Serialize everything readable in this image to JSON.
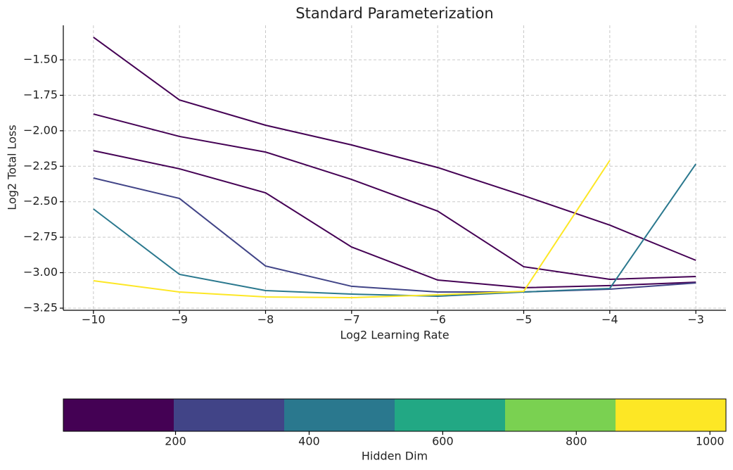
{
  "chart_data": {
    "type": "line",
    "title": "Standard Parameterization",
    "x_label": "Log2 Learning Rate",
    "y_label": "Log2 Total Loss",
    "x": [
      -10,
      -9,
      -8,
      -7,
      -6,
      -5,
      -4,
      -3
    ],
    "series": [
      {
        "color": "#440154",
        "values": [
          -1.341,
          -1.783,
          -1.961,
          -2.1,
          -2.259,
          -2.457,
          -2.665,
          -2.913
        ]
      },
      {
        "color": "#440154",
        "values": [
          -1.882,
          -2.04,
          -2.15,
          -2.343,
          -2.566,
          -2.958,
          -3.047,
          -3.027
        ]
      },
      {
        "color": "#440154",
        "values": [
          -2.14,
          -2.268,
          -2.437,
          -2.819,
          -3.052,
          -3.106,
          -3.091,
          -3.067
        ]
      },
      {
        "color": "#414487",
        "values": [
          -2.333,
          -2.477,
          -2.953,
          -3.096,
          -3.136,
          -3.136,
          -3.116,
          -3.072
        ]
      },
      {
        "color": "#2a788e",
        "values": [
          -2.551,
          -3.012,
          -3.126,
          -3.151,
          -3.166,
          -3.136,
          -3.111,
          -2.234
        ]
      },
      {
        "color": "#fde725",
        "values": [
          -3.057,
          -3.136,
          -3.171,
          -3.176,
          -3.156,
          -3.131,
          -2.209,
          null
        ]
      }
    ],
    "xlim": [
      -10.35,
      -2.65
    ],
    "xticks": [
      {
        "value": -10,
        "label": "−10"
      },
      {
        "value": -9,
        "label": "−9"
      },
      {
        "value": -8,
        "label": "−8"
      },
      {
        "value": -7,
        "label": "−7"
      },
      {
        "value": -6,
        "label": "−6"
      },
      {
        "value": -5,
        "label": "−5"
      },
      {
        "value": -4,
        "label": "−4"
      },
      {
        "value": -3,
        "label": "−3"
      }
    ],
    "ylim": [
      -3.265,
      -1.257
    ],
    "yticks": [
      {
        "value": -3.25,
        "label": "−3.25"
      },
      {
        "value": -3,
        "label": "−3.00"
      },
      {
        "value": -2.75,
        "label": "−2.75"
      },
      {
        "value": -2.5,
        "label": "−2.50"
      },
      {
        "value": -2.25,
        "label": "−2.25"
      },
      {
        "value": -2,
        "label": "−2.00"
      },
      {
        "value": -1.75,
        "label": "−1.75"
      },
      {
        "value": -1.5,
        "label": "−1.50"
      }
    ],
    "grid": true,
    "colorbar": {
      "label": "Hidden Dim",
      "lim": [
        32,
        1024
      ],
      "ticks": [
        200,
        400,
        600,
        800,
        1000
      ],
      "colors": [
        "#440154",
        "#414487",
        "#2a788e",
        "#22a884",
        "#7ad151",
        "#fde725"
      ]
    }
  }
}
